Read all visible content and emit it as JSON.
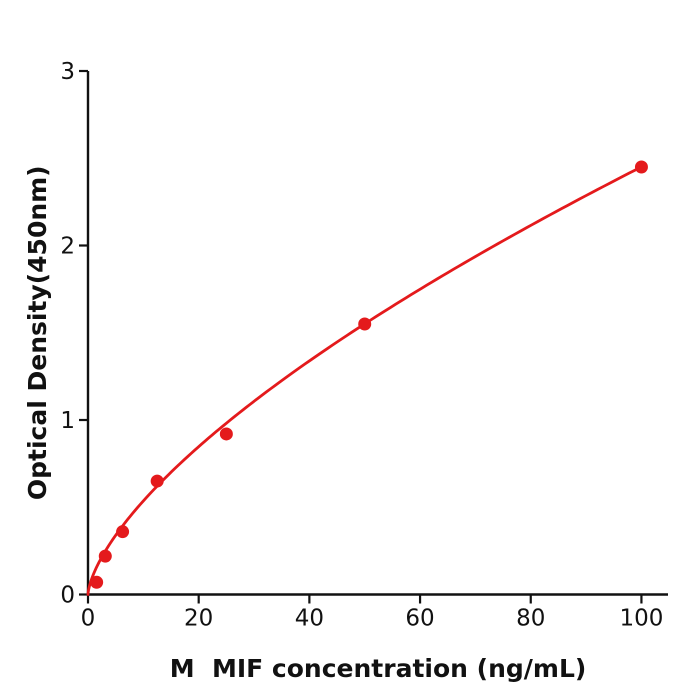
{
  "figure": {
    "kind": "elisa-standard-curve",
    "background_color": "#ffffff"
  },
  "chart_data": {
    "type": "scatter",
    "title": "",
    "xlabel": "M  MIF concentration (ng/mL)",
    "ylabel": "Optical Density(450nm)",
    "x": [
      1.5625,
      3.125,
      6.25,
      12.5,
      25,
      50,
      100
    ],
    "y": [
      0.07,
      0.22,
      0.36,
      0.65,
      0.92,
      1.55,
      2.45
    ],
    "x_ticks": [
      0,
      20,
      40,
      60,
      80,
      100
    ],
    "y_ticks": [
      0,
      1,
      2,
      3
    ],
    "xlim": [
      0,
      104.8
    ],
    "ylim": [
      0,
      3
    ],
    "grid": false,
    "legend": "none",
    "marker_color": "#e41a1c",
    "line_color": "#e41a1c",
    "axis_color": "#111111",
    "fit": {
      "type": "power",
      "a": 0.1173,
      "b": 0.66,
      "x_range": [
        0,
        100
      ]
    }
  }
}
